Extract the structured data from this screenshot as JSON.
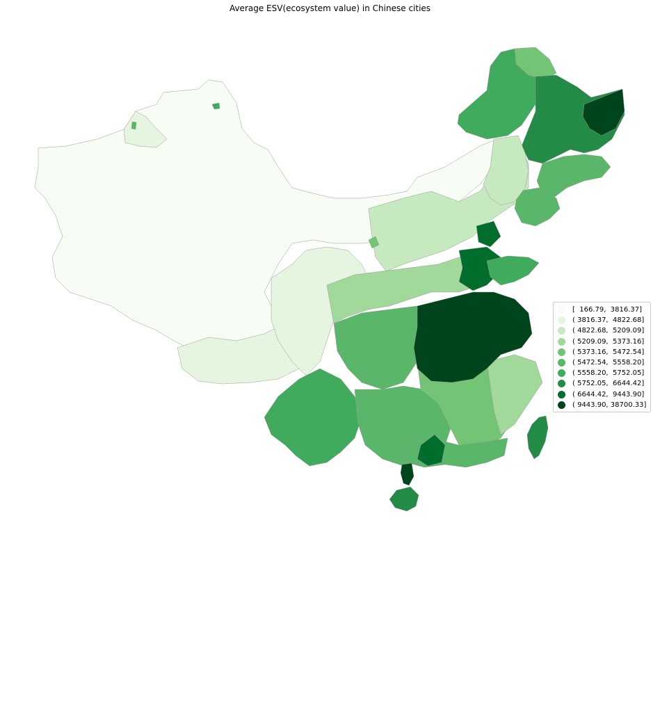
{
  "title": "Average ESV(ecosystem value) in Chinese cities",
  "chart_data": {
    "type": "choropleth",
    "title": "Average ESV(ecosystem value) in Chinese cities",
    "legend_position": "right",
    "colormap": "Greens",
    "classes": [
      {
        "label": "[  166.79,  3816.37]",
        "min": 166.79,
        "max": 3816.37,
        "color": "#f7fcf5"
      },
      {
        "label": "( 3816.37,  4822.68]",
        "min": 3816.37,
        "max": 4822.68,
        "color": "#e5f5e0"
      },
      {
        "label": "( 4822.68,  5209.09]",
        "min": 4822.68,
        "max": 5209.09,
        "color": "#c7e9c0"
      },
      {
        "label": "( 5209.09,  5373.16]",
        "min": 5209.09,
        "max": 5373.16,
        "color": "#a1d99b"
      },
      {
        "label": "( 5373.16,  5472.54]",
        "min": 5373.16,
        "max": 5472.54,
        "color": "#74c476"
      },
      {
        "label": "( 5472.54,  5558.20]",
        "min": 5472.54,
        "max": 5558.2,
        "color": "#5ab769"
      },
      {
        "label": "( 5558.20,  5752.05]",
        "min": 5558.2,
        "max": 5752.05,
        "color": "#41ab5d"
      },
      {
        "label": "( 5752.05,  6644.42]",
        "min": 5752.05,
        "max": 6644.42,
        "color": "#238b45"
      },
      {
        "label": "( 6644.42,  9443.90]",
        "min": 6644.42,
        "max": 9443.9,
        "color": "#006d2c"
      },
      {
        "label": "( 9443.90, 38700.33]",
        "min": 9443.9,
        "max": 38700.33,
        "color": "#00441b"
      }
    ]
  }
}
